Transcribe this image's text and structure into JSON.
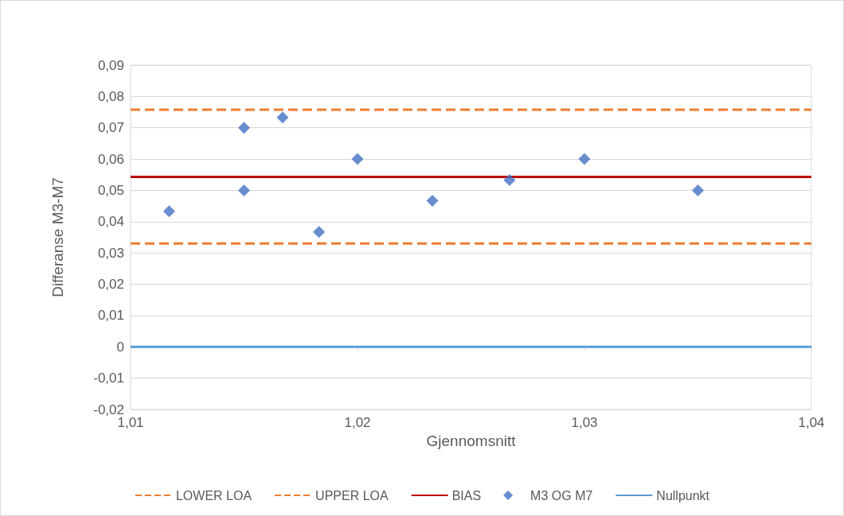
{
  "chart_data": {
    "type": "scatter",
    "xlabel": "Gjennomsnitt",
    "ylabel": "Differanse M3-M7",
    "xlim": [
      1.01,
      1.04
    ],
    "xticks": [
      {
        "value": 1.01,
        "label": "1,01"
      },
      {
        "value": 1.02,
        "label": "1,02"
      },
      {
        "value": 1.03,
        "label": "1,03"
      },
      {
        "value": 1.04,
        "label": "1,04"
      }
    ],
    "ylim": [
      -0.02,
      0.09
    ],
    "yticks": [
      {
        "value": -0.02,
        "label": "-0,02"
      },
      {
        "value": -0.01,
        "label": "-0,01"
      },
      {
        "value": 0,
        "label": "0"
      },
      {
        "value": 0.01,
        "label": "0,01"
      },
      {
        "value": 0.02,
        "label": "0,02"
      },
      {
        "value": 0.03,
        "label": "0,03"
      },
      {
        "value": 0.04,
        "label": "0,04"
      },
      {
        "value": 0.05,
        "label": "0,05"
      },
      {
        "value": 0.06,
        "label": "0,06"
      },
      {
        "value": 0.07,
        "label": "0,07"
      },
      {
        "value": 0.08,
        "label": "0,08"
      },
      {
        "value": 0.09,
        "label": "0,09"
      }
    ],
    "grid": "y",
    "legend": "bottom",
    "series": [
      {
        "name": "LOWER LOA",
        "type": "line",
        "line_style": "dashed",
        "marker": "none",
        "color": "#ed7d31",
        "x": [
          1.01,
          1.04
        ],
        "values": [
          0.033,
          0.033
        ]
      },
      {
        "name": "UPPER LOA",
        "type": "line",
        "line_style": "dashed",
        "marker": "none",
        "color": "#ed7d31",
        "x": [
          1.01,
          1.04
        ],
        "values": [
          0.0758,
          0.0758
        ]
      },
      {
        "name": "BIAS",
        "type": "line",
        "line_style": "solid",
        "marker": "none",
        "color": "#c00000",
        "x": [
          1.01,
          1.04
        ],
        "values": [
          0.0543,
          0.0543
        ]
      },
      {
        "name": "M3 OG M7",
        "marker": "diamond",
        "color": "#4472c4",
        "x": [
          1.0117,
          1.015,
          1.015,
          1.0167,
          1.0183,
          1.02,
          1.0233,
          1.0267,
          1.03,
          1.035
        ],
        "values": [
          0.0433,
          0.07,
          0.05,
          0.0733,
          0.0367,
          0.06,
          0.0467,
          0.0533,
          0.06,
          0.05
        ]
      },
      {
        "name": "Nullpunkt",
        "type": "line",
        "line_style": "solid",
        "marker": "none",
        "color": "#5b9bd5",
        "x": [
          1.01,
          1.04
        ],
        "values": [
          0,
          0
        ]
      }
    ]
  }
}
